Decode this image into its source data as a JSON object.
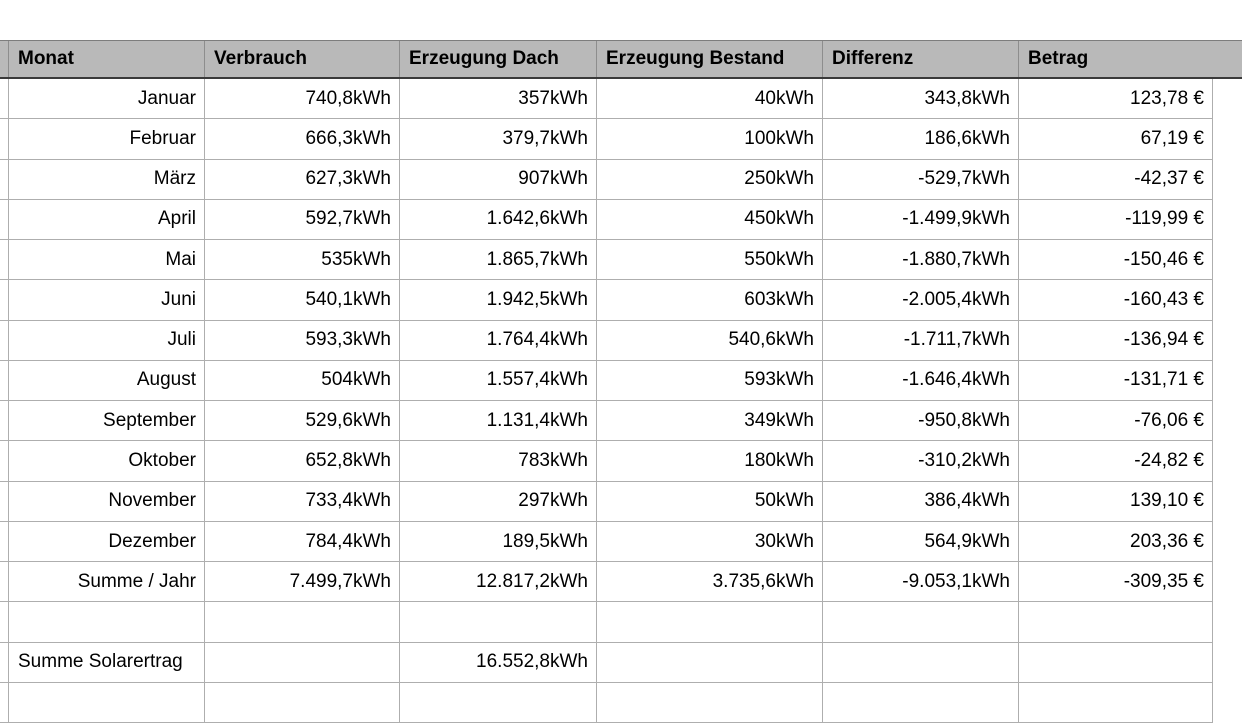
{
  "colors": {
    "header_background": "#b9b9b9",
    "header_rule": "#3a3a3a",
    "grid_line": "#aeaeae",
    "text": "#000000",
    "canvas": "#ffffff"
  },
  "table": {
    "columns": [
      "Monat",
      "Verbrauch",
      "Erzeugung Dach",
      "Erzeugung Bestand",
      "Differenz",
      "Betrag"
    ],
    "column_keys": [
      "monat",
      "verbrauch",
      "erzeugung-dach",
      "erzeugung-bestand",
      "differenz",
      "betrag"
    ],
    "rows": [
      {
        "label_align": "right",
        "cells": [
          "Januar",
          "740,8kWh",
          "357kWh",
          "40kWh",
          "343,8kWh",
          "123,78 €"
        ]
      },
      {
        "label_align": "right",
        "cells": [
          "Februar",
          "666,3kWh",
          "379,7kWh",
          "100kWh",
          "186,6kWh",
          "67,19 €"
        ]
      },
      {
        "label_align": "right",
        "cells": [
          "März",
          "627,3kWh",
          "907kWh",
          "250kWh",
          "-529,7kWh",
          "-42,37 €"
        ]
      },
      {
        "label_align": "right",
        "cells": [
          "April",
          "592,7kWh",
          "1.642,6kWh",
          "450kWh",
          "-1.499,9kWh",
          "-119,99 €"
        ]
      },
      {
        "label_align": "right",
        "cells": [
          "Mai",
          "535kWh",
          "1.865,7kWh",
          "550kWh",
          "-1.880,7kWh",
          "-150,46 €"
        ]
      },
      {
        "label_align": "right",
        "cells": [
          "Juni",
          "540,1kWh",
          "1.942,5kWh",
          "603kWh",
          "-2.005,4kWh",
          "-160,43 €"
        ]
      },
      {
        "label_align": "right",
        "cells": [
          "Juli",
          "593,3kWh",
          "1.764,4kWh",
          "540,6kWh",
          "-1.711,7kWh",
          "-136,94 €"
        ]
      },
      {
        "label_align": "right",
        "cells": [
          "August",
          "504kWh",
          "1.557,4kWh",
          "593kWh",
          "-1.646,4kWh",
          "-131,71 €"
        ]
      },
      {
        "label_align": "right",
        "cells": [
          "September",
          "529,6kWh",
          "1.131,4kWh",
          "349kWh",
          "-950,8kWh",
          "-76,06 €"
        ]
      },
      {
        "label_align": "right",
        "cells": [
          "Oktober",
          "652,8kWh",
          "783kWh",
          "180kWh",
          "-310,2kWh",
          "-24,82 €"
        ]
      },
      {
        "label_align": "right",
        "cells": [
          "November",
          "733,4kWh",
          "297kWh",
          "50kWh",
          "386,4kWh",
          "139,10 €"
        ]
      },
      {
        "label_align": "right",
        "cells": [
          "Dezember",
          "784,4kWh",
          "189,5kWh",
          "30kWh",
          "564,9kWh",
          "203,36 €"
        ]
      },
      {
        "label_align": "right",
        "cells": [
          "Summe / Jahr",
          "7.499,7kWh",
          "12.817,2kWh",
          "3.735,6kWh",
          "-9.053,1kWh",
          "-309,35 €"
        ]
      },
      {
        "label_align": "right",
        "cells": [
          "",
          "",
          "",
          "",
          "",
          ""
        ]
      },
      {
        "label_align": "left",
        "cells": [
          "Summe Solarertrag",
          "",
          "16.552,8kWh",
          "",
          "",
          ""
        ]
      },
      {
        "label_align": "right",
        "cells": [
          "",
          "",
          "",
          "",
          "",
          ""
        ]
      }
    ]
  }
}
